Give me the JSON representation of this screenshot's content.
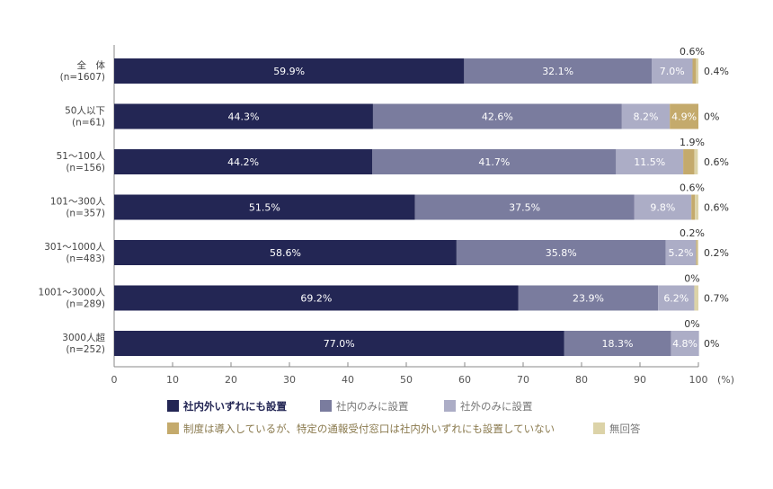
{
  "chart_data": {
    "type": "bar",
    "orientation": "horizontal",
    "stacked": true,
    "categories": [
      [
        "全　体",
        "(n=1607)"
      ],
      [
        "50人以下",
        "(n=61)"
      ],
      [
        "51〜100人",
        "(n=156)"
      ],
      [
        "101〜300人",
        "(n=357)"
      ],
      [
        "301〜1000人",
        "(n=483)"
      ],
      [
        "1001〜3000人",
        "(n=289)"
      ],
      [
        "3000人超",
        "(n=252)"
      ]
    ],
    "series": [
      {
        "name": "社内外いずれにも設置",
        "color": "#232654",
        "values": [
          59.9,
          44.3,
          44.2,
          51.5,
          58.6,
          69.2,
          77.0
        ],
        "labels": [
          "59.9%",
          "44.3%",
          "44.2%",
          "51.5%",
          "58.6%",
          "69.2%",
          "77.0%"
        ]
      },
      {
        "name": "社内のみに設置",
        "color": "#7a7c9e",
        "values": [
          32.1,
          42.6,
          41.7,
          37.5,
          35.8,
          23.9,
          18.3
        ],
        "labels": [
          "32.1%",
          "42.6%",
          "41.7%",
          "37.5%",
          "35.8%",
          "23.9%",
          "18.3%"
        ]
      },
      {
        "name": "社外のみに設置",
        "color": "#acadc6",
        "values": [
          7.0,
          8.2,
          11.5,
          9.8,
          5.2,
          6.2,
          4.8
        ],
        "labels": [
          "7.0%",
          "8.2%",
          "11.5%",
          "9.8%",
          "5.2%",
          "6.2%",
          "4.8%"
        ]
      },
      {
        "name": "制度は導入しているが、特定の通報受付窓口は社内外いずれにも設置していない",
        "color": "#c4aa6c",
        "values": [
          0.6,
          4.9,
          1.9,
          0.6,
          0.2,
          0,
          0
        ],
        "labels": [
          "0.6%",
          "4.9%",
          "1.9%",
          "0.6%",
          "0.2%",
          "0%",
          "0%"
        ]
      },
      {
        "name": "無回答",
        "color": "#dcd3a8",
        "values": [
          0.4,
          0,
          0.6,
          0.6,
          0.2,
          0.7,
          0
        ],
        "labels": [
          "0.4%",
          "0%",
          "0.6%",
          "0.6%",
          "0.2%",
          "0.7%",
          "0%"
        ]
      }
    ],
    "xlim": [
      0,
      100
    ],
    "xticks": [
      "0",
      "10",
      "20",
      "30",
      "40",
      "50",
      "60",
      "70",
      "80",
      "90",
      "100"
    ],
    "xunit": "(%)",
    "legend_position": "bottom"
  }
}
